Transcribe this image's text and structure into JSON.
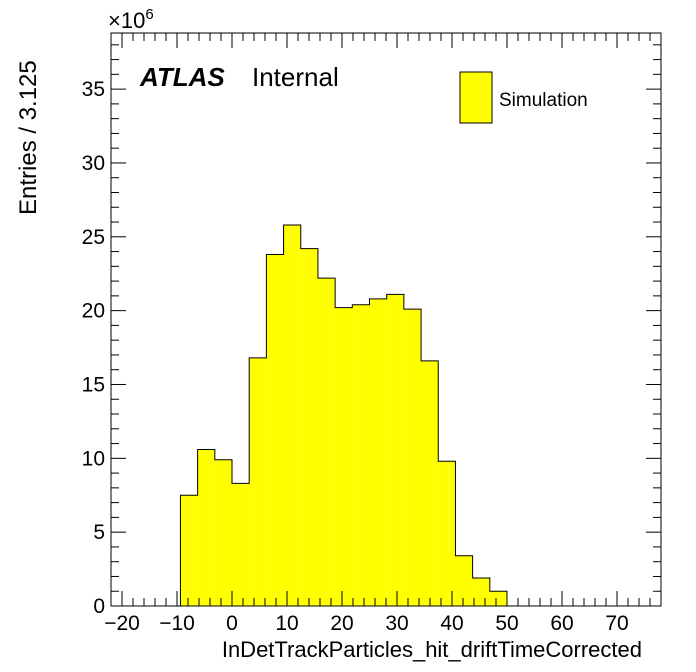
{
  "chart_data": {
    "type": "bar",
    "xlabel": "InDetTrackParticles_hit_driftTimeCorrected",
    "ylabel": "Entries / 3.125",
    "y_multiplier": "×10",
    "y_multiplier_exp": "6",
    "xlim": [
      -22,
      78
    ],
    "ylim": [
      0,
      38.8
    ],
    "x_ticks": [
      -20,
      -10,
      0,
      10,
      20,
      30,
      40,
      50,
      60,
      70
    ],
    "x_tick_labels": [
      "−20",
      "−10",
      "0",
      "10",
      "20",
      "30",
      "40",
      "50",
      "60",
      "70"
    ],
    "y_ticks": [
      0,
      5,
      10,
      15,
      20,
      25,
      30,
      35
    ],
    "y_tick_labels": [
      "0",
      "5",
      "10",
      "15",
      "20",
      "25",
      "30",
      "35"
    ],
    "bin_width": 3.125,
    "bin_edges": [
      -9.375,
      -6.25,
      -3.125,
      0,
      3.125,
      6.25,
      9.375,
      12.5,
      15.625,
      18.75,
      21.875,
      25,
      28.125,
      31.25,
      34.375,
      37.5,
      40.625,
      43.75,
      46.875,
      50
    ],
    "values": [
      7.5,
      10.6,
      9.9,
      8.3,
      16.8,
      23.8,
      25.8,
      24.2,
      22.2,
      20.2,
      20.4,
      20.8,
      21.1,
      20.1,
      16.6,
      9.8,
      3.4,
      1.9,
      1.0
    ],
    "fill_color": "#ffff00",
    "grid": false,
    "legend_position": "top-right",
    "series": [
      {
        "name": "Simulation"
      }
    ],
    "label_bold": "ATLAS",
    "label_status": "Internal"
  }
}
